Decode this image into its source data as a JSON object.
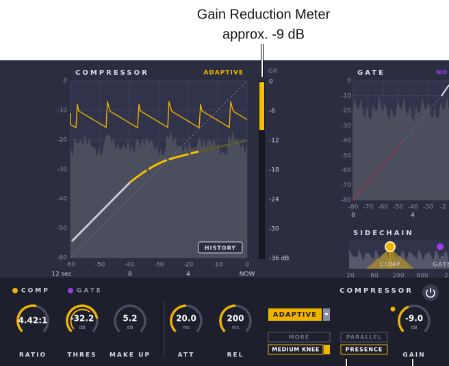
{
  "annotation": {
    "title": "Gain Reduction Meter",
    "subtitle": "approx. -9 dB"
  },
  "compressor_graph": {
    "title": "COMPRESSOR",
    "mode": "ADAPTIVE",
    "y_labels": [
      "0",
      "-10",
      "-20",
      "-30",
      "-40",
      "-50",
      "-60"
    ],
    "x_labels": [
      "-60",
      "-50",
      "-40",
      "-30",
      "-20",
      "-10",
      "0"
    ],
    "time_labels": [
      "12 sec",
      "8",
      "4",
      "NOW"
    ],
    "history_button": "HISTORY"
  },
  "gr_meter": {
    "title": "GR",
    "labels": [
      "0",
      "-6",
      "-12",
      "-18",
      "-24",
      "-30",
      "-36 dB"
    ]
  },
  "gate_graph": {
    "title": "GATE",
    "mode": "NO",
    "y_labels": [
      "0",
      "-10",
      "-20",
      "-30",
      "-40",
      "-50",
      "-60",
      "-70",
      "-80"
    ],
    "x_labels": [
      "-80",
      "-70",
      "-60",
      "-50",
      "-40",
      "-30",
      "-2"
    ],
    "time_labels": [
      "8",
      "4"
    ]
  },
  "sidechain": {
    "title": "SIDECHAIN",
    "markers": [
      "COMP",
      "GATE"
    ],
    "freq_labels": [
      "20",
      "60",
      "200",
      "600",
      "2"
    ]
  },
  "controls": {
    "tabs": [
      "COMP",
      "GATE"
    ],
    "section_title": "COMPRESSOR",
    "knobs": [
      {
        "value": "4.42:1",
        "label": "RATIO"
      },
      {
        "value": "-32.2",
        "unit": "dB",
        "label": "THRES"
      },
      {
        "value": "5.2",
        "unit": "dB",
        "label": "MAKE UP"
      },
      {
        "value": "20.0",
        "unit": "ms",
        "label": "ATT"
      },
      {
        "value": "200",
        "unit": "ms",
        "label": "REL"
      },
      {
        "value": "-9.0",
        "unit": "dB",
        "label": "GAIN"
      }
    ],
    "buttons": {
      "mode": "ADAPTIVE",
      "more": "MORE",
      "knee": "MEDIUM KNEE",
      "parallel": "PARALLEL",
      "presence": "PRESENCE"
    }
  }
}
